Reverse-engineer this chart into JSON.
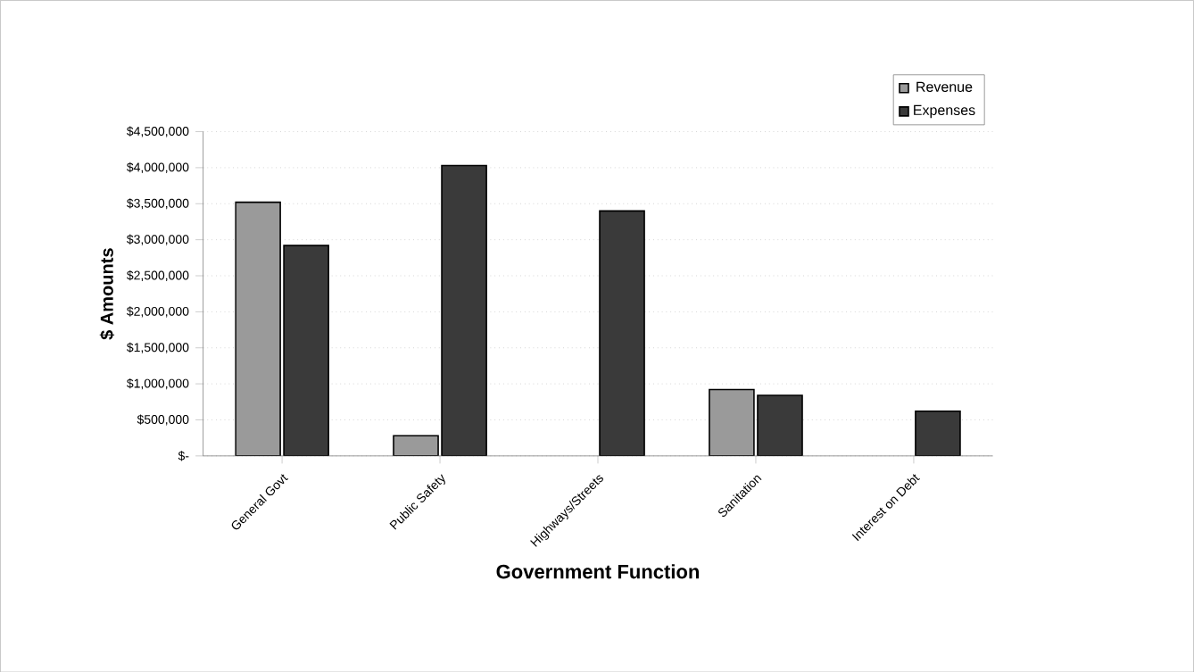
{
  "chart_data": {
    "type": "bar",
    "xlabel": "Government  Function",
    "ylabel": "$ Amounts",
    "categories": [
      "General Govt",
      "Public Safety",
      "Highways/Streets",
      "Sanitation",
      "Interest on Debt"
    ],
    "series": [
      {
        "name": "Revenue",
        "color": "#9a9a9a",
        "values": [
          3520000,
          280000,
          null,
          920000,
          null
        ]
      },
      {
        "name": "Expenses",
        "color": "#3a3a3a",
        "values": [
          2920000,
          4030000,
          3400000,
          840000,
          620000
        ]
      }
    ],
    "ylim": [
      0,
      4500000
    ],
    "yticks": [
      {
        "value": 0,
        "label": "$-"
      },
      {
        "value": 500000,
        "label": "$500,000"
      },
      {
        "value": 1000000,
        "label": "$1,000,000"
      },
      {
        "value": 1500000,
        "label": "$1,500,000"
      },
      {
        "value": 2000000,
        "label": "$2,000,000"
      },
      {
        "value": 2500000,
        "label": "$2,500,000"
      },
      {
        "value": 3000000,
        "label": "$3,000,000"
      },
      {
        "value": 3500000,
        "label": "$3,500,000"
      },
      {
        "value": 4000000,
        "label": "$4,000,000"
      },
      {
        "value": 4500000,
        "label": "$4,500,000"
      }
    ],
    "grid": "y",
    "legend": "top right"
  }
}
